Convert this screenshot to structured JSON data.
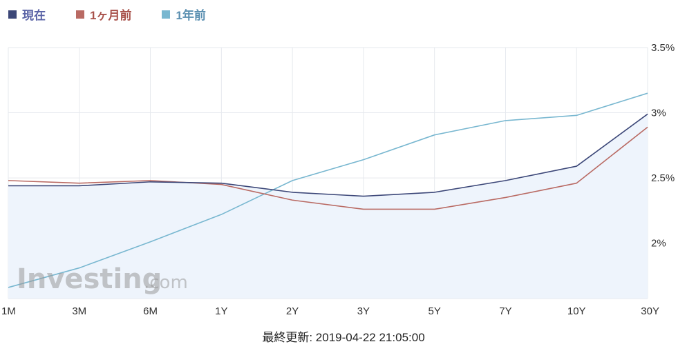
{
  "legend": [
    {
      "label": "現在",
      "color": "#3c4778"
    },
    {
      "label": "1ヶ月前",
      "color": "#b96a63"
    },
    {
      "label": "1年前",
      "color": "#78b7d0"
    }
  ],
  "watermark": {
    "main": "Investing",
    "sub": ".com"
  },
  "footer": {
    "label": "最終更新:",
    "timestamp": "2019-04-22 21:05:00"
  },
  "chart_data": {
    "type": "line",
    "categories": [
      "1M",
      "3M",
      "6M",
      "1Y",
      "2Y",
      "3Y",
      "5Y",
      "7Y",
      "10Y",
      "30Y"
    ],
    "y_ticks": [
      "3.5%",
      "3%",
      "2.5%",
      "2%"
    ],
    "y_tick_values": [
      3.5,
      3.0,
      2.5,
      2.0
    ],
    "ylim": [
      1.575,
      3.5
    ],
    "y_axis_position": "right",
    "grid": true,
    "legend_position": "top-left",
    "series": [
      {
        "name": "現在",
        "color": "#3c4778",
        "filled": true,
        "fill_color": "#eef4fc",
        "values": [
          2.44,
          2.44,
          2.47,
          2.46,
          2.39,
          2.36,
          2.39,
          2.48,
          2.59,
          2.99
        ]
      },
      {
        "name": "1ヶ月前",
        "color": "#b96a63",
        "filled": false,
        "values": [
          2.48,
          2.46,
          2.48,
          2.45,
          2.33,
          2.26,
          2.26,
          2.35,
          2.46,
          2.89
        ]
      },
      {
        "name": "1年前",
        "color": "#78b7d0",
        "filled": false,
        "values": [
          1.66,
          1.81,
          2.01,
          2.22,
          2.48,
          2.64,
          2.83,
          2.94,
          2.98,
          3.15
        ]
      }
    ]
  }
}
